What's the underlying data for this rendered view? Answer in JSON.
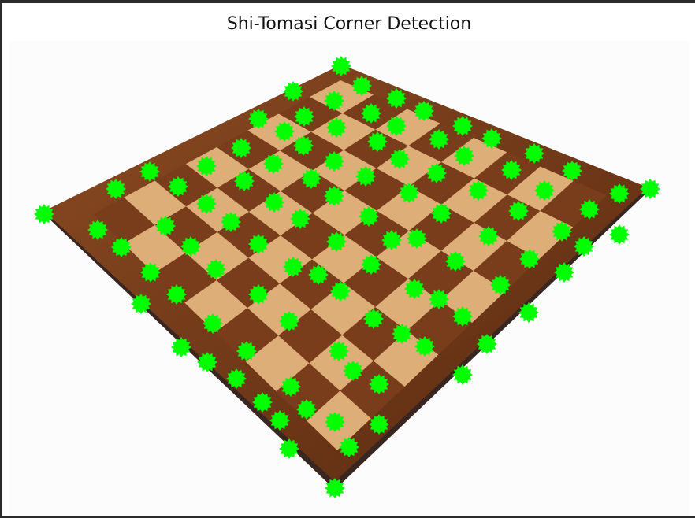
{
  "window": {
    "title": "Shi-Tomasi Corner Detection"
  },
  "image": {
    "description_name": "chessboard",
    "board_colors": {
      "dark": "#7a3d1c",
      "light": "#e0b07a",
      "frame": "#6b3416",
      "shadow": "#3a2a24"
    },
    "marker_color": "#00ff00",
    "marker_shape": "star-burst"
  }
}
